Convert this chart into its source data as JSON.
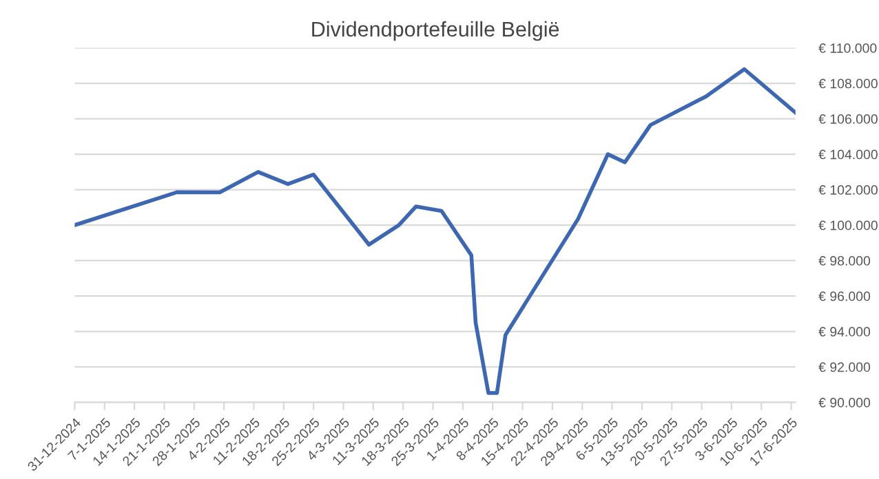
{
  "chart_data": {
    "type": "line",
    "title": "Dividendportefeuille België",
    "x": [
      "2024-12-31",
      "2025-01-24",
      "2025-02-03",
      "2025-02-12",
      "2025-02-19",
      "2025-02-25",
      "2025-03-10",
      "2025-03-17",
      "2025-03-21",
      "2025-03-27",
      "2025-04-03",
      "2025-04-04",
      "2025-04-07",
      "2025-04-09",
      "2025-04-11",
      "2025-04-28",
      "2025-05-05",
      "2025-05-09",
      "2025-05-15",
      "2025-05-28",
      "2025-06-06",
      "2025-06-18"
    ],
    "series": [
      {
        "color": "#3d67b1",
        "values": [
          100000,
          101860,
          101850,
          103000,
          102320,
          102850,
          98900,
          100000,
          101050,
          100800,
          98300,
          94500,
          90530,
          90530,
          93800,
          100340,
          104000,
          103550,
          105650,
          107260,
          108800,
          106350
        ]
      }
    ],
    "xlim": [
      "2024-12-31",
      "2025-06-18"
    ],
    "xticks": [
      {
        "value": "2024-12-31",
        "label": "31-12-2024"
      },
      {
        "value": "2025-01-07",
        "label": "7-1-2025"
      },
      {
        "value": "2025-01-14",
        "label": "14-1-2025"
      },
      {
        "value": "2025-01-21",
        "label": "21-1-2025"
      },
      {
        "value": "2025-01-28",
        "label": "28-1-2025"
      },
      {
        "value": "2025-02-04",
        "label": "4-2-2025"
      },
      {
        "value": "2025-02-11",
        "label": "11-2-2025"
      },
      {
        "value": "2025-02-18",
        "label": "18-2-2025"
      },
      {
        "value": "2025-02-25",
        "label": "25-2-2025"
      },
      {
        "value": "2025-03-04",
        "label": "4-3-2025"
      },
      {
        "value": "2025-03-11",
        "label": "11-3-2025"
      },
      {
        "value": "2025-03-18",
        "label": "18-3-2025"
      },
      {
        "value": "2025-03-25",
        "label": "25-3-2025"
      },
      {
        "value": "2025-04-01",
        "label": "1-4-2025"
      },
      {
        "value": "2025-04-08",
        "label": "8-4-2025"
      },
      {
        "value": "2025-04-15",
        "label": "15-4-2025"
      },
      {
        "value": "2025-04-22",
        "label": "22-4-2025"
      },
      {
        "value": "2025-04-29",
        "label": "29-4-2025"
      },
      {
        "value": "2025-05-06",
        "label": "6-5-2025"
      },
      {
        "value": "2025-05-13",
        "label": "13-5-2025"
      },
      {
        "value": "2025-05-20",
        "label": "20-5-2025"
      },
      {
        "value": "2025-05-27",
        "label": "27-5-2025"
      },
      {
        "value": "2025-06-03",
        "label": "3-6-2025"
      },
      {
        "value": "2025-06-10",
        "label": "10-6-2025"
      },
      {
        "value": "2025-06-17",
        "label": "17-6-2025"
      }
    ],
    "ylim": [
      90000,
      110000
    ],
    "yticks": [
      {
        "value": 90000,
        "label": "€ 90.000"
      },
      {
        "value": 92000,
        "label": "€ 92.000"
      },
      {
        "value": 94000,
        "label": "€ 94.000"
      },
      {
        "value": 96000,
        "label": "€ 96.000"
      },
      {
        "value": 98000,
        "label": "€ 98.000"
      },
      {
        "value": 100000,
        "label": "€ 100.000"
      },
      {
        "value": 102000,
        "label": "€ 102.000"
      },
      {
        "value": 104000,
        "label": "€ 104.000"
      },
      {
        "value": 106000,
        "label": "€ 106.000"
      },
      {
        "value": 108000,
        "label": "€ 108.000"
      },
      {
        "value": 110000,
        "label": "€ 110.000"
      }
    ],
    "grid": "y",
    "line_style": "solid"
  }
}
